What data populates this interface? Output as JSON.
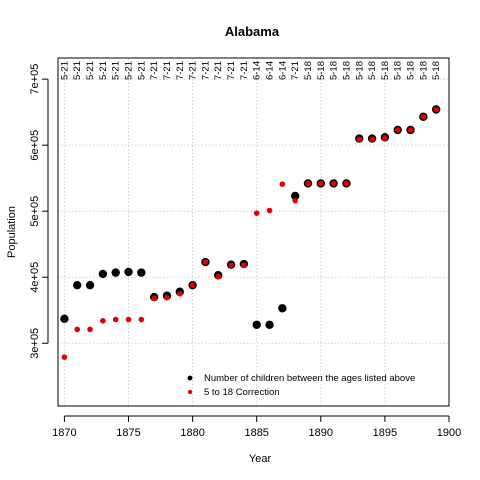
{
  "chart_data": {
    "type": "scatter",
    "title": "Alabama",
    "xlabel": "Year",
    "ylabel": "Population",
    "xlim": [
      1869.5,
      1900
    ],
    "ylim": [
      205000,
      732000
    ],
    "x_ticks": [
      1870,
      1875,
      1880,
      1885,
      1890,
      1895,
      1900
    ],
    "x_tick_labels": [
      "1870",
      "1875",
      "1880",
      "1885",
      "1890",
      "1895",
      "1900"
    ],
    "y_ticks": [
      300000,
      400000,
      500000,
      600000,
      700000
    ],
    "y_tick_labels": [
      "3e+05",
      "4e+05",
      "5e+05",
      "6e+05",
      "7e+05"
    ],
    "grid": true,
    "grid_style": "dotted",
    "legend_position": "bottom-right",
    "top_labels": [
      {
        "x": 1870,
        "label": "5-21"
      },
      {
        "x": 1871,
        "label": "5-21"
      },
      {
        "x": 1872,
        "label": "5-21"
      },
      {
        "x": 1873,
        "label": "5-21"
      },
      {
        "x": 1874,
        "label": "5-21"
      },
      {
        "x": 1875,
        "label": "5-21"
      },
      {
        "x": 1876,
        "label": "5-21"
      },
      {
        "x": 1877,
        "label": "7-21"
      },
      {
        "x": 1878,
        "label": "7-21"
      },
      {
        "x": 1879,
        "label": "7-21"
      },
      {
        "x": 1880,
        "label": "7-21"
      },
      {
        "x": 1881,
        "label": "7-21"
      },
      {
        "x": 1882,
        "label": "7-21"
      },
      {
        "x": 1883,
        "label": "7-21"
      },
      {
        "x": 1884,
        "label": "7-21"
      },
      {
        "x": 1885,
        "label": "6-14"
      },
      {
        "x": 1886,
        "label": "6-14"
      },
      {
        "x": 1887,
        "label": "6-14"
      },
      {
        "x": 1888,
        "label": "7-21"
      },
      {
        "x": 1889,
        "label": "5-18"
      },
      {
        "x": 1890,
        "label": "5-18"
      },
      {
        "x": 1891,
        "label": "5-18"
      },
      {
        "x": 1892,
        "label": "5-18"
      },
      {
        "x": 1893,
        "label": "5-18"
      },
      {
        "x": 1894,
        "label": "5-18"
      },
      {
        "x": 1895,
        "label": "5-18"
      },
      {
        "x": 1896,
        "label": "5-18"
      },
      {
        "x": 1897,
        "label": "5-18"
      },
      {
        "x": 1898,
        "label": "5-18"
      },
      {
        "x": 1899,
        "label": "5-18"
      }
    ],
    "series": [
      {
        "name": "Number of children between the ages listed above",
        "color": "#000000",
        "marker": "large-dot",
        "x": [
          1870,
          1871,
          1872,
          1873,
          1874,
          1875,
          1876,
          1877,
          1878,
          1879,
          1880,
          1881,
          1882,
          1883,
          1884,
          1885,
          1886,
          1887,
          1888,
          1889,
          1890,
          1891,
          1892,
          1893,
          1894,
          1895,
          1896,
          1897,
          1898,
          1899
        ],
        "y": [
          337000,
          388000,
          388000,
          405000,
          407000,
          408000,
          407000,
          370000,
          372000,
          378000,
          388000,
          423000,
          403000,
          419000,
          420000,
          328000,
          328000,
          353000,
          523000,
          542000,
          542000,
          542000,
          542000,
          610000,
          610000,
          612000,
          623000,
          623000,
          643000,
          654000
        ]
      },
      {
        "name": "5 to 18 Correction",
        "color": "#e00000",
        "marker": "small-dot",
        "x": [
          1870,
          1871,
          1872,
          1873,
          1874,
          1875,
          1876,
          1877,
          1878,
          1879,
          1880,
          1881,
          1882,
          1883,
          1884,
          1885,
          1886,
          1887,
          1888,
          1889,
          1890,
          1891,
          1892,
          1893,
          1894,
          1895,
          1896,
          1897,
          1898,
          1899
        ],
        "y": [
          279000,
          321000,
          321000,
          334000,
          336000,
          336000,
          336000,
          368000,
          369000,
          375000,
          388000,
          423000,
          401000,
          418000,
          418000,
          497000,
          501000,
          541000,
          516000,
          542000,
          542000,
          542000,
          542000,
          609000,
          609000,
          611000,
          623000,
          623000,
          643000,
          654000
        ]
      }
    ]
  }
}
